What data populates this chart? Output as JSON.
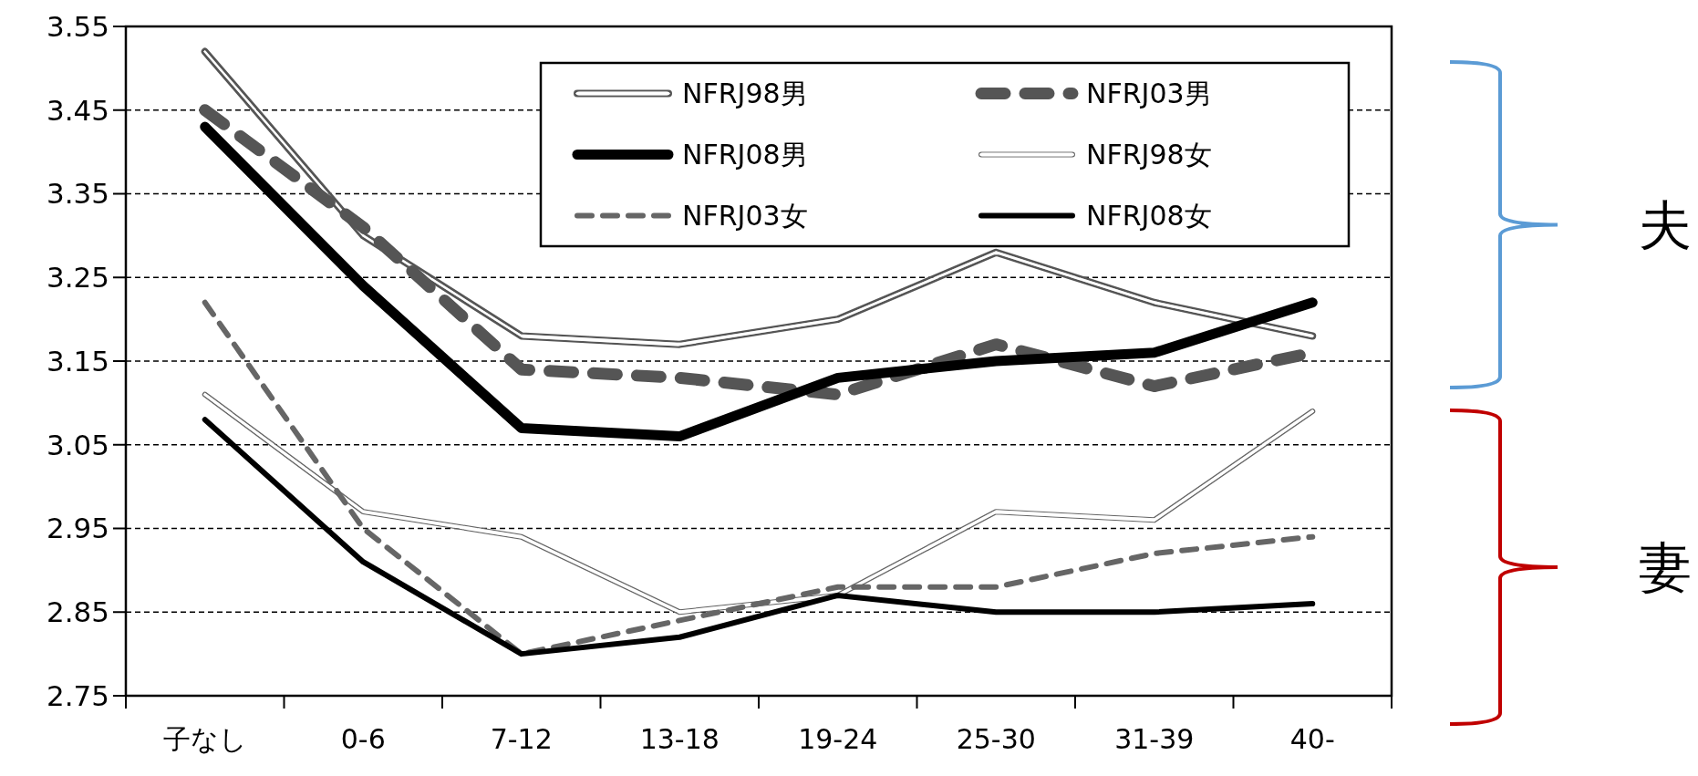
{
  "chart_data": {
    "type": "line",
    "categories": [
      "子なし",
      "0-6",
      "7-12",
      "13-18",
      "19-24",
      "25-30",
      "31-39",
      "40-"
    ],
    "ylim": [
      2.75,
      3.55
    ],
    "yticks": [
      2.75,
      2.85,
      2.95,
      3.05,
      3.15,
      3.25,
      3.35,
      3.45,
      3.55
    ],
    "grid": "y",
    "legend": "top right",
    "marker": "none",
    "series": [
      {
        "name": "NFRJ98男",
        "color": "#555555",
        "line_style": "solid",
        "values": [
          3.52,
          3.3,
          3.18,
          3.17,
          3.2,
          3.28,
          3.22,
          3.18
        ]
      },
      {
        "name": "NFRJ03男",
        "color": "#555555",
        "line_style": "dashed",
        "values": [
          3.45,
          3.31,
          3.14,
          3.13,
          3.11,
          3.17,
          3.12,
          3.16
        ]
      },
      {
        "name": "NFRJ08男",
        "color": "#000000",
        "line_style": "solid",
        "values": [
          3.43,
          3.24,
          3.07,
          3.06,
          3.13,
          3.15,
          3.16,
          3.22
        ]
      },
      {
        "name": "NFRJ98女",
        "color": "#666666",
        "line_style": "solid",
        "values": [
          3.11,
          2.97,
          2.94,
          2.85,
          2.87,
          2.97,
          2.96,
          3.09
        ]
      },
      {
        "name": "NFRJ03女",
        "color": "#666666",
        "line_style": "dashed",
        "values": [
          3.22,
          2.95,
          2.8,
          2.84,
          2.88,
          2.88,
          2.92,
          2.94
        ]
      },
      {
        "name": "NFRJ08女",
        "color": "#000000",
        "line_style": "solid",
        "values": [
          3.08,
          2.91,
          2.8,
          2.82,
          2.87,
          2.85,
          2.85,
          2.86
        ]
      }
    ],
    "annotations": [
      "夫",
      "妻"
    ]
  }
}
